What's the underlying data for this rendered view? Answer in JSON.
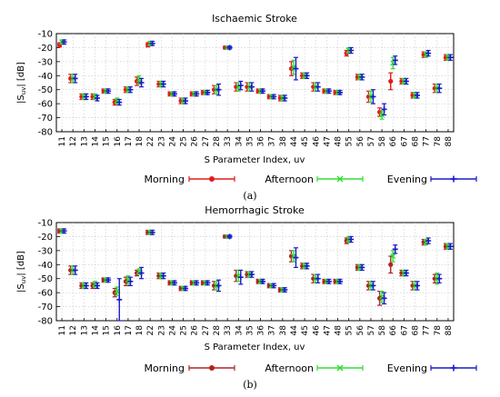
{
  "chart_data": [
    {
      "type": "scatter",
      "title": "Ischaemic Stroke",
      "xlabel": "S Parameter Index, uv",
      "ylabel": "|S",
      "ylabel_sub": "uv",
      "ylabel_unit": "| [dB]",
      "panel_label": "(a)",
      "ylim": [
        -80,
        -10
      ],
      "yticks": [
        "-10",
        "-20",
        "-30",
        "-40",
        "-50",
        "-60",
        "-70",
        "-80"
      ],
      "grid": true,
      "legend_position": "bottom",
      "categories": [
        "11",
        "12",
        "13",
        "14",
        "15",
        "16",
        "17",
        "18",
        "22",
        "23",
        "24",
        "25",
        "26",
        "27",
        "28",
        "33",
        "34",
        "35",
        "36",
        "37",
        "38",
        "44",
        "45",
        "46",
        "47",
        "48",
        "55",
        "56",
        "57",
        "58",
        "66",
        "67",
        "68",
        "77",
        "78",
        "88"
      ],
      "series": [
        {
          "name": "Morning",
          "color": "#e41a1c",
          "marker": "circle",
          "values": [
            -18,
            -42,
            -55,
            -55,
            -51,
            -59,
            -50,
            -44,
            -18,
            -46,
            -53,
            -58,
            -53,
            -52,
            -50,
            -20,
            -48,
            -48,
            -51,
            -55,
            -56,
            -35,
            -40,
            -48,
            -51,
            -52,
            -24,
            -41,
            -55,
            -66,
            -44,
            -44,
            -54,
            -25,
            -49,
            -27
          ],
          "errors": [
            1.5,
            3,
            2,
            2,
            1.5,
            2,
            2,
            3,
            1.5,
            2,
            1.5,
            2,
            1.5,
            1.5,
            3,
            1,
            3,
            3,
            1.5,
            1.5,
            2,
            5,
            2,
            3,
            1.5,
            1.5,
            2,
            2,
            4,
            3,
            6,
            2,
            2,
            2,
            3,
            2
          ]
        },
        {
          "name": "Afternoon",
          "color": "#33dd33",
          "marker": "cross",
          "values": [
            -16,
            -42,
            -55,
            -55,
            -51,
            -58,
            -50,
            -43,
            -17,
            -46,
            -53,
            -58,
            -53,
            -52,
            -50,
            -20,
            -48,
            -48,
            -51,
            -55,
            -56,
            -34,
            -40,
            -48,
            -51,
            -52,
            -22,
            -41,
            -55,
            -68,
            -31,
            -44,
            -54,
            -25,
            -49,
            -27
          ],
          "errors": [
            1.5,
            3,
            2,
            2,
            1.5,
            2,
            2,
            3,
            1.5,
            2,
            1.5,
            2,
            1.5,
            1.5,
            3,
            1,
            3,
            3,
            1.5,
            1.5,
            2,
            5,
            2,
            3,
            1.5,
            1.5,
            2,
            2,
            4,
            3,
            4,
            2,
            2,
            2,
            3,
            2
          ]
        },
        {
          "name": "Evening",
          "color": "#1a1acc",
          "marker": "plus",
          "values": [
            -16,
            -42,
            -55,
            -56,
            -51,
            -59,
            -50,
            -45,
            -17,
            -46,
            -53,
            -58,
            -53,
            -52,
            -50,
            -20,
            -47,
            -48,
            -51,
            -55,
            -56,
            -35,
            -40,
            -48,
            -51,
            -52,
            -22,
            -41,
            -55,
            -64,
            -29,
            -44,
            -54,
            -24,
            -49,
            -27
          ],
          "errors": [
            1.5,
            3,
            2,
            2,
            1.5,
            2,
            2,
            3,
            1.5,
            2,
            1.5,
            2,
            1.5,
            1.5,
            4,
            1,
            3,
            3,
            1.5,
            1.5,
            2,
            8,
            2,
            3,
            1.5,
            1.5,
            2,
            2,
            5,
            4,
            3,
            2,
            2,
            2,
            3,
            2
          ]
        }
      ]
    },
    {
      "type": "scatter",
      "title": "Hemorrhagic Stroke",
      "xlabel": "S Parameter Index, uv",
      "ylabel": "|S",
      "ylabel_sub": "uv",
      "ylabel_unit": "| [dB]",
      "panel_label": "(b)",
      "ylim": [
        -80,
        -10
      ],
      "yticks": [
        "-10",
        "-20",
        "-30",
        "-40",
        "-50",
        "-60",
        "-70",
        "-80"
      ],
      "grid": true,
      "legend_position": "bottom",
      "categories": [
        "11",
        "12",
        "13",
        "14",
        "15",
        "16",
        "17",
        "18",
        "22",
        "23",
        "24",
        "25",
        "26",
        "27",
        "28",
        "33",
        "34",
        "35",
        "36",
        "37",
        "38",
        "44",
        "45",
        "46",
        "47",
        "48",
        "55",
        "56",
        "57",
        "58",
        "66",
        "67",
        "68",
        "77",
        "78",
        "88"
      ],
      "series": [
        {
          "name": "Morning",
          "color": "#b22222",
          "marker": "circle",
          "values": [
            -16,
            -44,
            -55,
            -55,
            -51,
            -60,
            -52,
            -46,
            -17,
            -48,
            -53,
            -57,
            -53,
            -53,
            -55,
            -20,
            -48,
            -47,
            -52,
            -55,
            -58,
            -34,
            -41,
            -50,
            -52,
            -52,
            -23,
            -42,
            -55,
            -64,
            -40,
            -46,
            -55,
            -24,
            -50,
            -27
          ],
          "errors": [
            1.5,
            3,
            2,
            2,
            1.5,
            3,
            3,
            2,
            1.5,
            2,
            1.5,
            1.5,
            1.5,
            1.5,
            3,
            1,
            4,
            2,
            1.5,
            1.5,
            1.5,
            4,
            2,
            3,
            1.5,
            1.5,
            2,
            2,
            3,
            5,
            6,
            2,
            3,
            2,
            3,
            2
          ]
        },
        {
          "name": "Afternoon",
          "color": "#33dd33",
          "marker": "cross",
          "values": [
            -16,
            -44,
            -55,
            -54,
            -51,
            -59,
            -51,
            -45,
            -17,
            -48,
            -53,
            -57,
            -53,
            -53,
            -55,
            -20,
            -48,
            -47,
            -52,
            -55,
            -58,
            -34,
            -41,
            -50,
            -52,
            -52,
            -22,
            -42,
            -55,
            -63,
            -34,
            -46,
            -55,
            -24,
            -50,
            -27
          ],
          "errors": [
            1.5,
            3,
            2,
            2,
            1.5,
            3,
            3,
            2,
            1.5,
            2,
            1.5,
            1.5,
            1.5,
            1.5,
            3,
            1,
            4,
            2,
            1.5,
            1.5,
            1.5,
            4,
            2,
            3,
            1.5,
            1.5,
            2,
            2,
            3,
            4,
            4,
            2,
            3,
            2,
            4,
            2
          ]
        },
        {
          "name": "Evening",
          "color": "#1a1acc",
          "marker": "plus",
          "values": [
            -16,
            -44,
            -55,
            -55,
            -51,
            -65,
            -52,
            -46,
            -17,
            -48,
            -53,
            -57,
            -53,
            -53,
            -55,
            -20,
            -49,
            -47,
            -52,
            -55,
            -58,
            -35,
            -41,
            -50,
            -52,
            -52,
            -22,
            -42,
            -55,
            -64,
            -29,
            -46,
            -55,
            -23,
            -50,
            -27
          ],
          "errors": [
            1.5,
            3,
            2,
            2,
            1.5,
            15,
            3,
            4,
            1.5,
            2,
            1.5,
            1.5,
            1.5,
            1.5,
            4,
            1,
            5,
            2,
            1.5,
            1.5,
            1.5,
            7,
            2,
            3,
            1.5,
            1.5,
            2,
            2,
            3,
            4,
            3,
            2,
            3,
            2,
            3,
            2
          ]
        }
      ]
    }
  ]
}
